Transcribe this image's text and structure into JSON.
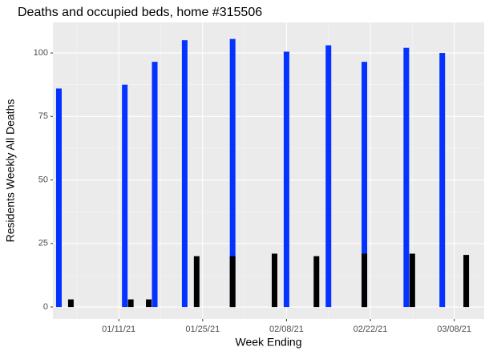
{
  "chart_data": {
    "type": "bar",
    "title": "Deaths and occupied beds, home #315506",
    "x_label": "Week Ending",
    "y_label": "Residents Weekly All Deaths",
    "xlim": [
      "12/31/20",
      "03/13/21"
    ],
    "xticks": [
      "01/11/21",
      "01/25/21",
      "02/08/21",
      "02/22/21",
      "03/08/21"
    ],
    "ylim": [
      -4.7,
      112
    ],
    "yticks": [
      0,
      25,
      50,
      75,
      100
    ],
    "grid": true,
    "series": [
      {
        "color": "#0433ff",
        "x": [
          "01/01/21",
          "01/12/21",
          "01/17/21",
          "01/22/21",
          "01/30/21",
          "02/08/21",
          "02/15/21",
          "02/21/21",
          "02/28/21",
          "03/06/21"
        ],
        "values": [
          86,
          87.5,
          96.5,
          105,
          105.5,
          100.5,
          103,
          96.5,
          102,
          100
        ]
      },
      {
        "color": "#000000",
        "x": [
          "01/03/21",
          "01/13/21",
          "01/16/21",
          "01/24/21",
          "01/30/21",
          "02/06/21",
          "02/13/21",
          "02/21/21",
          "03/01/21",
          "03/10/21"
        ],
        "values": [
          3,
          3,
          3,
          20,
          20,
          21,
          20,
          21,
          21,
          20.5
        ]
      }
    ]
  }
}
